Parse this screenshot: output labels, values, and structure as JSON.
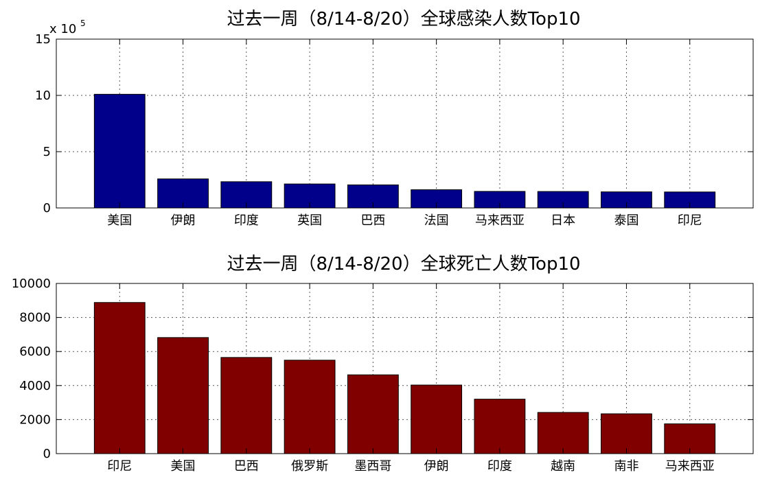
{
  "chart_data": [
    {
      "type": "bar",
      "title": "过去一周（8/14-8/20）全球感染人数Top10",
      "xlabel": "",
      "ylabel": "",
      "categories": [
        "美国",
        "伊朗",
        "印度",
        "英国",
        "巴西",
        "法国",
        "马来西亚",
        "日本",
        "泰国",
        "印尼"
      ],
      "values": [
        1010000,
        258000,
        233000,
        213000,
        205000,
        162000,
        147000,
        146000,
        143000,
        142000
      ],
      "ylim": [
        0,
        1500000
      ],
      "yticks": [
        0,
        500000,
        1000000,
        1500000
      ],
      "ytick_labels": [
        "0",
        "5",
        "10",
        "15"
      ],
      "scale_label_base": "x 10",
      "scale_label_exp": "5",
      "grid": true,
      "bar_color": "#00008b"
    },
    {
      "type": "bar",
      "title": "过去一周（8/14-8/20）全球死亡人数Top10",
      "xlabel": "",
      "ylabel": "",
      "categories": [
        "印尼",
        "美国",
        "巴西",
        "俄罗斯",
        "墨西哥",
        "伊朗",
        "印度",
        "越南",
        "南非",
        "马来西亚"
      ],
      "values": [
        8880,
        6820,
        5650,
        5490,
        4630,
        4030,
        3200,
        2420,
        2340,
        1750
      ],
      "ylim": [
        0,
        10000
      ],
      "yticks": [
        0,
        2000,
        4000,
        6000,
        8000,
        10000
      ],
      "ytick_labels": [
        "0",
        "2000",
        "4000",
        "6000",
        "8000",
        "10000"
      ],
      "grid": true,
      "bar_color": "#800000"
    }
  ]
}
